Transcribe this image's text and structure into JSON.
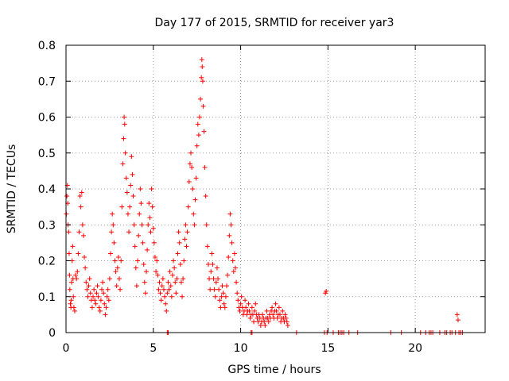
{
  "chart_data": {
    "type": "scatter",
    "title": "Day 177 of 2015, SRMTID for receiver yar3",
    "xlabel": "GPS time / hours",
    "ylabel": "SRMTID / TECUs",
    "xlim": [
      0,
      24
    ],
    "ylim": [
      0,
      0.8
    ],
    "xticks": [
      0,
      5,
      10,
      15,
      20
    ],
    "xtick_labels": [
      "0",
      "5",
      "10",
      "15",
      "20"
    ],
    "yticks": [
      0,
      0.1,
      0.2,
      0.3,
      0.4,
      0.5,
      0.6,
      0.7,
      0.8
    ],
    "ytick_labels": [
      "0",
      "0.1",
      "0.2",
      "0.3",
      "0.4",
      "0.5",
      "0.6",
      "0.7",
      "0.8"
    ],
    "grid": true,
    "marker": "+",
    "marker_color": "#ff0000",
    "series": [
      {
        "name": "SRMTID",
        "points": [
          [
            0.02,
            0.33
          ],
          [
            0.05,
            0.38
          ],
          [
            0.08,
            0.41
          ],
          [
            0.1,
            0.36
          ],
          [
            0.12,
            0.3
          ],
          [
            0.15,
            0.28
          ],
          [
            0.18,
            0.22
          ],
          [
            0.2,
            0.16
          ],
          [
            0.22,
            0.12
          ],
          [
            0.25,
            0.08
          ],
          [
            0.28,
            0.07
          ],
          [
            0.3,
            0.09
          ],
          [
            0.32,
            0.14
          ],
          [
            0.35,
            0.2
          ],
          [
            0.38,
            0.24
          ],
          [
            0.4,
            0.15
          ],
          [
            0.42,
            0.1
          ],
          [
            0.45,
            0.07
          ],
          [
            0.5,
            0.06
          ],
          [
            0.55,
            0.16
          ],
          [
            0.6,
            0.15
          ],
          [
            0.65,
            0.17
          ],
          [
            0.7,
            0.22
          ],
          [
            0.75,
            0.28
          ],
          [
            0.8,
            0.38
          ],
          [
            0.85,
            0.35
          ],
          [
            0.9,
            0.39
          ],
          [
            0.95,
            0.3
          ],
          [
            1.0,
            0.27
          ],
          [
            1.05,
            0.21
          ],
          [
            1.1,
            0.18
          ],
          [
            1.15,
            0.14
          ],
          [
            1.2,
            0.12
          ],
          [
            1.25,
            0.1
          ],
          [
            1.3,
            0.13
          ],
          [
            1.35,
            0.15
          ],
          [
            1.4,
            0.11
          ],
          [
            1.45,
            0.09
          ],
          [
            1.5,
            0.07
          ],
          [
            1.55,
            0.1
          ],
          [
            1.6,
            0.12
          ],
          [
            1.65,
            0.09
          ],
          [
            1.7,
            0.08
          ],
          [
            1.75,
            0.11
          ],
          [
            1.8,
            0.13
          ],
          [
            1.85,
            0.1
          ],
          [
            1.9,
            0.07
          ],
          [
            1.95,
            0.06
          ],
          [
            2.0,
            0.09
          ],
          [
            2.05,
            0.12
          ],
          [
            2.1,
            0.14
          ],
          [
            2.15,
            0.11
          ],
          [
            2.2,
            0.08
          ],
          [
            2.25,
            0.05
          ],
          [
            2.3,
            0.07
          ],
          [
            2.35,
            0.1
          ],
          [
            2.4,
            0.12
          ],
          [
            2.45,
            0.09
          ],
          [
            2.5,
            0.15
          ],
          [
            2.55,
            0.22
          ],
          [
            2.6,
            0.28
          ],
          [
            2.65,
            0.33
          ],
          [
            2.7,
            0.3
          ],
          [
            2.75,
            0.25
          ],
          [
            2.8,
            0.2
          ],
          [
            2.85,
            0.17
          ],
          [
            2.9,
            0.13
          ],
          [
            2.95,
            0.18
          ],
          [
            3.0,
            0.21
          ],
          [
            3.05,
            0.15
          ],
          [
            3.1,
            0.12
          ],
          [
            3.15,
            0.2
          ],
          [
            3.2,
            0.35
          ],
          [
            3.25,
            0.47
          ],
          [
            3.3,
            0.54
          ],
          [
            3.33,
            0.6
          ],
          [
            3.36,
            0.58
          ],
          [
            3.4,
            0.5
          ],
          [
            3.45,
            0.43
          ],
          [
            3.5,
            0.39
          ],
          [
            3.55,
            0.33
          ],
          [
            3.6,
            0.28
          ],
          [
            3.65,
            0.35
          ],
          [
            3.7,
            0.41
          ],
          [
            3.75,
            0.49
          ],
          [
            3.8,
            0.44
          ],
          [
            3.85,
            0.38
          ],
          [
            3.9,
            0.3
          ],
          [
            3.95,
            0.24
          ],
          [
            4.0,
            0.18
          ],
          [
            4.05,
            0.13
          ],
          [
            4.1,
            0.2
          ],
          [
            4.15,
            0.27
          ],
          [
            4.2,
            0.33
          ],
          [
            4.25,
            0.4
          ],
          [
            4.3,
            0.36
          ],
          [
            4.35,
            0.3
          ],
          [
            4.4,
            0.25
          ],
          [
            4.45,
            0.19
          ],
          [
            4.5,
            0.14
          ],
          [
            4.55,
            0.11
          ],
          [
            4.6,
            0.17
          ],
          [
            4.65,
            0.23
          ],
          [
            4.7,
            0.3
          ],
          [
            4.75,
            0.36
          ],
          [
            4.8,
            0.32
          ],
          [
            4.85,
            0.28
          ],
          [
            4.9,
            0.4
          ],
          [
            4.95,
            0.35
          ],
          [
            5.0,
            0.29
          ],
          [
            5.05,
            0.25
          ],
          [
            5.1,
            0.21
          ],
          [
            5.15,
            0.17
          ],
          [
            5.2,
            0.2
          ],
          [
            5.25,
            0.16
          ],
          [
            5.3,
            0.12
          ],
          [
            5.35,
            0.14
          ],
          [
            5.4,
            0.11
          ],
          [
            5.45,
            0.09
          ],
          [
            5.5,
            0.13
          ],
          [
            5.55,
            0.15
          ],
          [
            5.6,
            0.12
          ],
          [
            5.65,
            0.1
          ],
          [
            5.7,
            0.08
          ],
          [
            5.75,
            0.06
          ],
          [
            5.8,
            0.11
          ],
          [
            5.85,
            0.14
          ],
          [
            5.9,
            0.12
          ],
          [
            5.95,
            0.17
          ],
          [
            6.0,
            0.13
          ],
          [
            6.05,
            0.1
          ],
          [
            6.1,
            0.16
          ],
          [
            6.15,
            0.2
          ],
          [
            6.2,
            0.18
          ],
          [
            6.25,
            0.14
          ],
          [
            6.3,
            0.11
          ],
          [
            6.35,
            0.15
          ],
          [
            6.4,
            0.22
          ],
          [
            6.45,
            0.28
          ],
          [
            6.5,
            0.25
          ],
          [
            6.55,
            0.19
          ],
          [
            6.6,
            0.14
          ],
          [
            6.65,
            0.1
          ],
          [
            6.7,
            0.15
          ],
          [
            6.75,
            0.2
          ],
          [
            6.8,
            0.26
          ],
          [
            6.85,
            0.3
          ],
          [
            6.9,
            0.24
          ],
          [
            6.95,
            0.28
          ],
          [
            7.0,
            0.35
          ],
          [
            7.05,
            0.42
          ],
          [
            7.1,
            0.47
          ],
          [
            7.15,
            0.5
          ],
          [
            7.2,
            0.46
          ],
          [
            7.25,
            0.4
          ],
          [
            7.3,
            0.33
          ],
          [
            7.35,
            0.3
          ],
          [
            7.4,
            0.37
          ],
          [
            7.45,
            0.43
          ],
          [
            7.5,
            0.52
          ],
          [
            7.55,
            0.58
          ],
          [
            7.6,
            0.55
          ],
          [
            7.65,
            0.6
          ],
          [
            7.7,
            0.65
          ],
          [
            7.75,
            0.71
          ],
          [
            7.78,
            0.76
          ],
          [
            7.8,
            0.74
          ],
          [
            7.83,
            0.7
          ],
          [
            7.86,
            0.63
          ],
          [
            7.9,
            0.56
          ],
          [
            7.95,
            0.46
          ],
          [
            8.0,
            0.38
          ],
          [
            8.05,
            0.3
          ],
          [
            8.1,
            0.24
          ],
          [
            8.15,
            0.19
          ],
          [
            8.2,
            0.15
          ],
          [
            8.25,
            0.12
          ],
          [
            8.3,
            0.17
          ],
          [
            8.35,
            0.22
          ],
          [
            8.4,
            0.19
          ],
          [
            8.45,
            0.15
          ],
          [
            8.5,
            0.12
          ],
          [
            8.55,
            0.1
          ],
          [
            8.6,
            0.14
          ],
          [
            8.65,
            0.18
          ],
          [
            8.7,
            0.15
          ],
          [
            8.75,
            0.12
          ],
          [
            8.8,
            0.09
          ],
          [
            8.85,
            0.07
          ],
          [
            8.9,
            0.1
          ],
          [
            8.95,
            0.13
          ],
          [
            9.0,
            0.11
          ],
          [
            9.05,
            0.08
          ],
          [
            9.1,
            0.07
          ],
          [
            9.15,
            0.1
          ],
          [
            9.2,
            0.13
          ],
          [
            9.25,
            0.16
          ],
          [
            9.3,
            0.21
          ],
          [
            9.35,
            0.27
          ],
          [
            9.4,
            0.33
          ],
          [
            9.45,
            0.3
          ],
          [
            9.5,
            0.25
          ],
          [
            9.55,
            0.2
          ],
          [
            9.6,
            0.17
          ],
          [
            9.65,
            0.22
          ],
          [
            9.7,
            0.18
          ],
          [
            9.75,
            0.14
          ],
          [
            9.8,
            0.11
          ],
          [
            9.85,
            0.09
          ],
          [
            9.9,
            0.07
          ],
          [
            9.95,
            0.06
          ],
          [
            10.0,
            0.08
          ],
          [
            10.05,
            0.1
          ],
          [
            10.1,
            0.07
          ],
          [
            10.15,
            0.05
          ],
          [
            10.2,
            0.06
          ],
          [
            10.25,
            0.09
          ],
          [
            10.3,
            0.07
          ],
          [
            10.35,
            0.05
          ],
          [
            10.4,
            0.06
          ],
          [
            10.45,
            0.08
          ],
          [
            10.5,
            0.06
          ],
          [
            10.55,
            0.04
          ],
          [
            10.6,
            0.05
          ],
          [
            10.65,
            0.07
          ],
          [
            10.7,
            0.05
          ],
          [
            10.75,
            0.03
          ],
          [
            10.8,
            0.06
          ],
          [
            10.85,
            0.08
          ],
          [
            10.9,
            0.05
          ],
          [
            10.95,
            0.04
          ],
          [
            11.0,
            0.03
          ],
          [
            11.05,
            0.05
          ],
          [
            11.1,
            0.04
          ],
          [
            11.15,
            0.02
          ],
          [
            11.2,
            0.03
          ],
          [
            11.25,
            0.05
          ],
          [
            11.3,
            0.04
          ],
          [
            11.35,
            0.03
          ],
          [
            11.4,
            0.02
          ],
          [
            11.45,
            0.04
          ],
          [
            11.5,
            0.06
          ],
          [
            11.55,
            0.04
          ],
          [
            11.6,
            0.03
          ],
          [
            11.65,
            0.05
          ],
          [
            11.7,
            0.04
          ],
          [
            11.75,
            0.06
          ],
          [
            11.8,
            0.07
          ],
          [
            11.85,
            0.05
          ],
          [
            11.9,
            0.04
          ],
          [
            11.95,
            0.06
          ],
          [
            12.0,
            0.08
          ],
          [
            12.05,
            0.06
          ],
          [
            12.1,
            0.04
          ],
          [
            12.15,
            0.05
          ],
          [
            12.2,
            0.07
          ],
          [
            12.25,
            0.05
          ],
          [
            12.3,
            0.03
          ],
          [
            12.35,
            0.04
          ],
          [
            12.4,
            0.06
          ],
          [
            12.45,
            0.04
          ],
          [
            12.5,
            0.03
          ],
          [
            12.55,
            0.05
          ],
          [
            12.6,
            0.04
          ],
          [
            12.65,
            0.03
          ],
          [
            12.7,
            0.02
          ],
          [
            14.85,
            0.11
          ],
          [
            14.9,
            0.115
          ],
          [
            22.4,
            0.05
          ],
          [
            22.45,
            0.035
          ],
          [
            5.8,
            0.0
          ],
          [
            5.85,
            0.0
          ],
          [
            10.6,
            0.0
          ],
          [
            10.65,
            0.0
          ],
          [
            13.2,
            0.0
          ],
          [
            14.8,
            0.0
          ],
          [
            14.95,
            0.0
          ],
          [
            15.3,
            0.0
          ],
          [
            15.6,
            0.0
          ],
          [
            15.7,
            0.0
          ],
          [
            15.8,
            0.0
          ],
          [
            15.9,
            0.0
          ],
          [
            16.2,
            0.0
          ],
          [
            16.7,
            0.0
          ],
          [
            18.6,
            0.0
          ],
          [
            19.2,
            0.0
          ],
          [
            20.3,
            0.0
          ],
          [
            20.6,
            0.0
          ],
          [
            20.8,
            0.0
          ],
          [
            20.9,
            0.0
          ],
          [
            21.0,
            0.0
          ],
          [
            21.4,
            0.0
          ],
          [
            21.7,
            0.0
          ],
          [
            21.8,
            0.0
          ],
          [
            22.0,
            0.0
          ],
          [
            22.1,
            0.0
          ],
          [
            22.3,
            0.0
          ],
          [
            22.5,
            0.0
          ],
          [
            22.6,
            0.0
          ],
          [
            22.7,
            0.0
          ]
        ]
      }
    ]
  }
}
